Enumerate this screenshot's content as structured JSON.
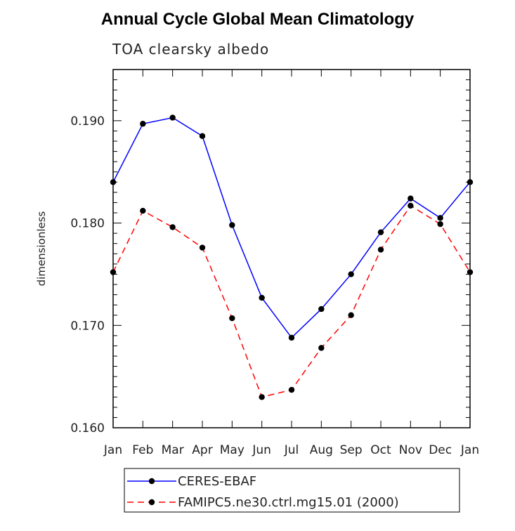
{
  "chart_data": {
    "type": "line",
    "title": "Annual Cycle Global Mean Climatology",
    "subtitle": "TOA clearsky albedo",
    "xlabel": "",
    "ylabel": "dimensionless",
    "categories": [
      "Jan",
      "Feb",
      "Mar",
      "Apr",
      "May",
      "Jun",
      "Jul",
      "Aug",
      "Sep",
      "Oct",
      "Nov",
      "Dec",
      "Jan"
    ],
    "ylim": [
      0.16,
      0.195
    ],
    "yticks": [
      "0.160",
      "0.170",
      "0.180",
      "0.190"
    ],
    "grid": false,
    "legend_position": "bottom",
    "series": [
      {
        "name": "CERES-EBAF",
        "color": "#0000ff",
        "style": "solid",
        "values": [
          0.184,
          0.1897,
          0.1903,
          0.1885,
          0.1798,
          0.1727,
          0.1688,
          0.1716,
          0.175,
          0.1791,
          0.1824,
          0.1805,
          0.184
        ]
      },
      {
        "name": "FAMIPC5.ne30.ctrl.mg15.01 (2000)",
        "color": "#ff0000",
        "style": "dashed",
        "values": [
          0.1752,
          0.1812,
          0.1796,
          0.1776,
          0.1707,
          0.163,
          0.1637,
          0.1678,
          0.171,
          0.1774,
          0.1817,
          0.1799,
          0.1752
        ]
      }
    ]
  }
}
